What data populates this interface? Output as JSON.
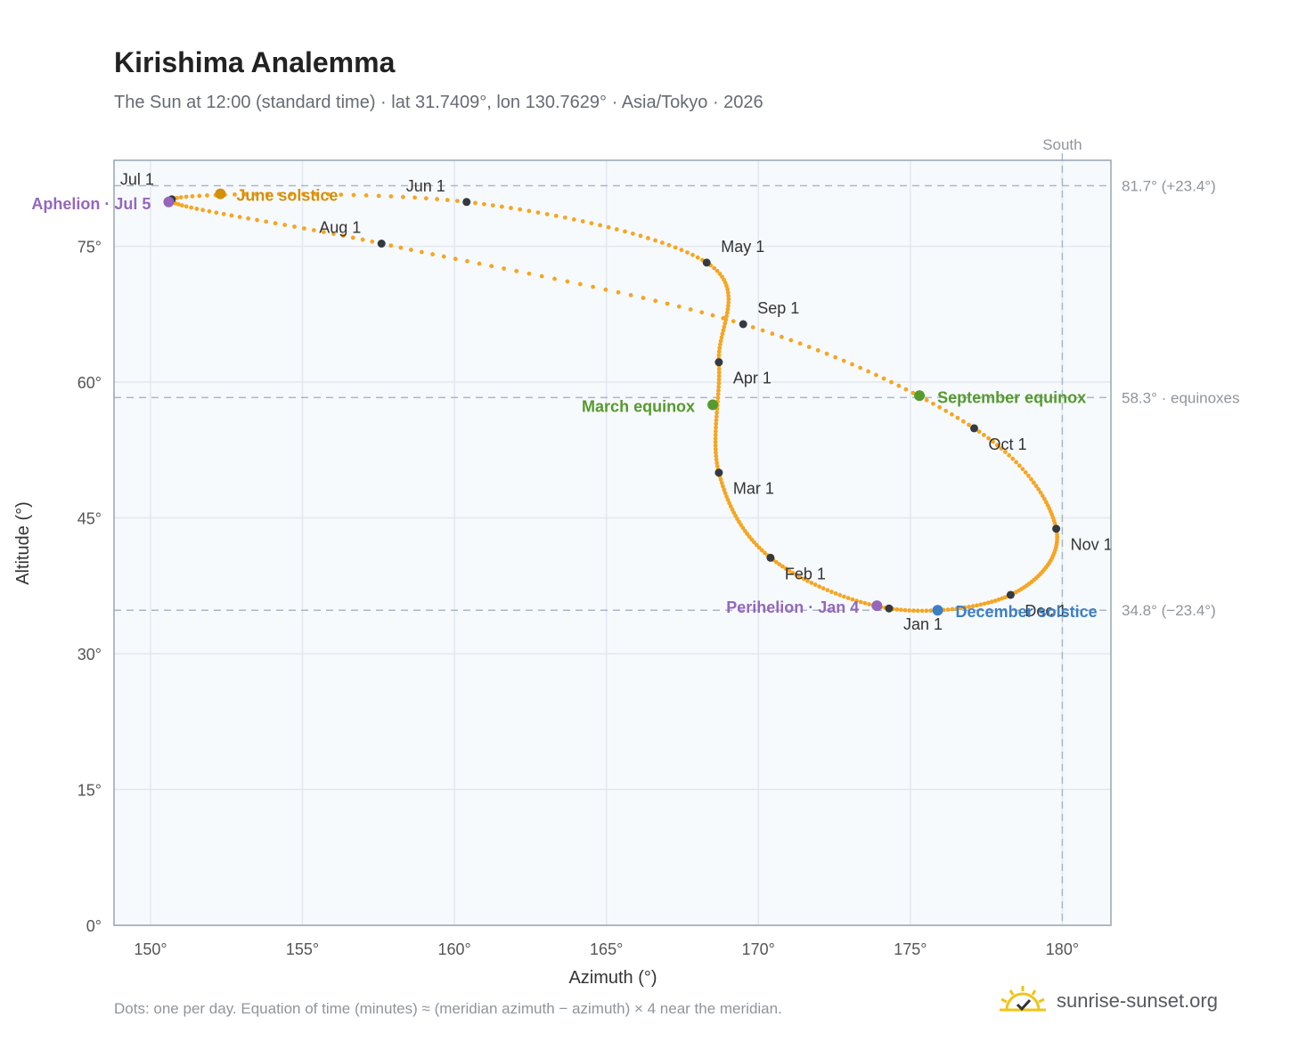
{
  "header": {
    "title": "Kirishima Analemma",
    "subtitle": "The Sun at 12:00 (standard time) · lat 31.7409°, lon 130.7629° · Asia/Tokyo · 2026"
  },
  "footer": {
    "note": "Dots: one per day. Equation of time (minutes) ≈ (meridian azimuth − azimuth) × 4 near the meridian.",
    "brand": "sunrise-sunset.org"
  },
  "colors": {
    "path": "#f5a623",
    "month_marker": "#343a40",
    "june_solstice": "#d4900a",
    "december_solstice": "#3d7fc4",
    "equinox": "#559a2e",
    "apsis": "#9467bd",
    "reference_line": "#a9b8c6",
    "plot_bg": "#f7fafd",
    "grid": "#e2e8ee"
  },
  "chart_data": {
    "type": "scatter",
    "title": "Kirishima Analemma",
    "xlabel": "Azimuth (°)",
    "ylabel": "Altitude (°)",
    "xlim": [
      148.8,
      181.6
    ],
    "ylim": [
      0,
      84.5
    ],
    "xticks": [
      150,
      155,
      160,
      165,
      170,
      175,
      180
    ],
    "xtick_labels": [
      "150°",
      "155°",
      "160°",
      "165°",
      "170°",
      "175°",
      "180°"
    ],
    "yticks": [
      0,
      15,
      30,
      45,
      60,
      75
    ],
    "ytick_labels": [
      "0°",
      "15°",
      "30°",
      "45°",
      "60°",
      "75°"
    ],
    "grid": true,
    "meridian": {
      "azimuth": 180,
      "label": "South"
    },
    "reference_lines": [
      {
        "altitude": 81.7,
        "label": "81.7° (+23.4°)"
      },
      {
        "altitude": 58.3,
        "label": "58.3° · equinoxes"
      },
      {
        "altitude": 34.8,
        "label": "34.8° (−23.4°)"
      }
    ],
    "month_markers": [
      {
        "label": "Jan 1",
        "azimuth": 174.3,
        "altitude": 35.0
      },
      {
        "label": "Feb 1",
        "azimuth": 170.4,
        "altitude": 40.6
      },
      {
        "label": "Mar 1",
        "azimuth": 168.7,
        "altitude": 50.0
      },
      {
        "label": "Apr 1",
        "azimuth": 168.7,
        "altitude": 62.2
      },
      {
        "label": "May 1",
        "azimuth": 168.3,
        "altitude": 73.2
      },
      {
        "label": "Jun 1",
        "azimuth": 160.4,
        "altitude": 79.9
      },
      {
        "label": "Jul 1",
        "azimuth": 150.7,
        "altitude": 80.2
      },
      {
        "label": "Aug 1",
        "azimuth": 157.6,
        "altitude": 75.3
      },
      {
        "label": "Sep 1",
        "azimuth": 169.5,
        "altitude": 66.4
      },
      {
        "label": "Oct 1",
        "azimuth": 177.1,
        "altitude": 54.9
      },
      {
        "label": "Nov 1",
        "azimuth": 179.8,
        "altitude": 43.8
      },
      {
        "label": "Dec 1",
        "azimuth": 178.3,
        "altitude": 36.5
      }
    ],
    "events": [
      {
        "label": "June solstice",
        "azimuth": 152.3,
        "altitude": 80.8,
        "color_key": "june_solstice"
      },
      {
        "label": "Aphelion · Jul 5",
        "azimuth": 150.6,
        "altitude": 79.9,
        "color_key": "apsis"
      },
      {
        "label": "March equinox",
        "azimuth": 168.5,
        "altitude": 57.5,
        "color_key": "equinox"
      },
      {
        "label": "September equinox",
        "azimuth": 175.3,
        "altitude": 58.5,
        "color_key": "equinox"
      },
      {
        "label": "Perihelion · Jan 4",
        "azimuth": 173.9,
        "altitude": 35.3,
        "color_key": "apsis"
      },
      {
        "label": "December solstice",
        "azimuth": 175.9,
        "altitude": 34.8,
        "color_key": "december_solstice"
      }
    ],
    "path_dot_count": 365
  }
}
